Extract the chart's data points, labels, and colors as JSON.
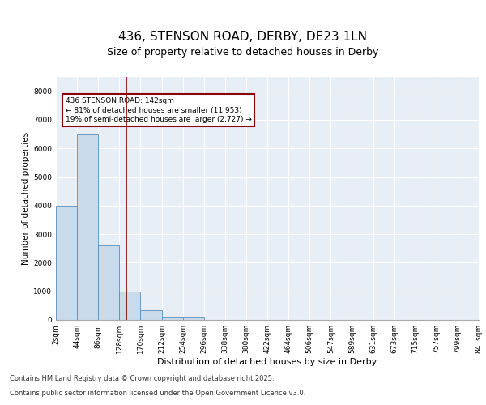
{
  "title": "436, STENSON ROAD, DERBY, DE23 1LN",
  "subtitle": "Size of property relative to detached houses in Derby",
  "xlabel": "Distribution of detached houses by size in Derby",
  "ylabel": "Number of detached properties",
  "bin_labels": [
    "2sqm",
    "44sqm",
    "86sqm",
    "128sqm",
    "170sqm",
    "212sqm",
    "254sqm",
    "296sqm",
    "338sqm",
    "380sqm",
    "422sqm",
    "464sqm",
    "506sqm",
    "547sqm",
    "589sqm",
    "631sqm",
    "673sqm",
    "715sqm",
    "757sqm",
    "799sqm",
    "841sqm"
  ],
  "bar_heights": [
    4000,
    6500,
    2600,
    1000,
    350,
    120,
    100,
    0,
    0,
    0,
    0,
    0,
    0,
    0,
    0,
    0,
    0,
    0,
    0,
    0
  ],
  "bar_color": "#c9daea",
  "bar_edge_color": "#5b8db8",
  "vline_color": "#8b0000",
  "annotation_text": "436 STENSON ROAD: 142sqm\n← 81% of detached houses are smaller (11,953)\n19% of semi-detached houses are larger (2,727) →",
  "annotation_box_color": "#8b0000",
  "ylim": [
    0,
    8500
  ],
  "yticks": [
    0,
    1000,
    2000,
    3000,
    4000,
    5000,
    6000,
    7000,
    8000
  ],
  "grid_color": "#ffffff",
  "background_color": "#e8eef5",
  "footer_line1": "Contains HM Land Registry data © Crown copyright and database right 2025.",
  "footer_line2": "Contains public sector information licensed under the Open Government Licence v3.0.",
  "title_fontsize": 11,
  "subtitle_fontsize": 9,
  "xlabel_fontsize": 8,
  "ylabel_fontsize": 7.5,
  "tick_fontsize": 6.5,
  "annotation_fontsize": 6.5,
  "footer_fontsize": 6
}
